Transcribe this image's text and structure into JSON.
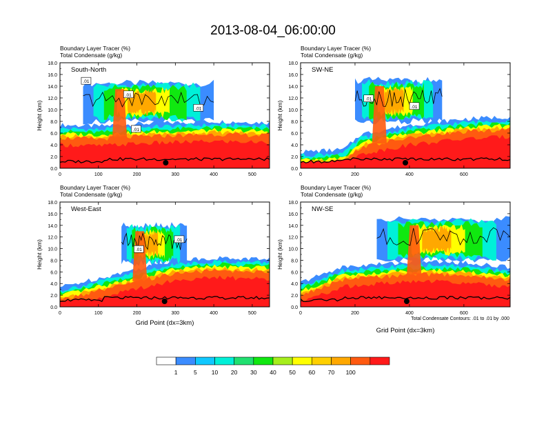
{
  "figure": {
    "title": "2013-08-04_06:00:00",
    "contour_note": "Total Condensate Contours: .01 to .01 by .000"
  },
  "chart_data": [
    {
      "type": "heatmap",
      "panel_label": "South-North",
      "subtitle_line1": "Boundary Layer Tracer   (%)",
      "subtitle_line2": "Total Condensate   (g/kg)",
      "xlabel": "",
      "ylabel": "Height (km)",
      "xlim": [
        0,
        545
      ],
      "ylim": [
        0,
        18
      ],
      "xticks": [
        0,
        100,
        200,
        300,
        400,
        500
      ],
      "yticks": [
        "0.0",
        "2.0",
        "4.0",
        "6.0",
        "8.0",
        "10.0",
        "12.0",
        "14.0",
        "16.0",
        "18.0"
      ],
      "marker_x": 275,
      "contour_labels": [
        {
          "text": ".01",
          "x": 68,
          "y": 14.8
        },
        {
          "text": ".01",
          "x": 178,
          "y": 12.5
        },
        {
          "text": ".01",
          "x": 360,
          "y": 10.2
        },
        {
          "text": ".01",
          "x": 198,
          "y": 6.6
        }
      ],
      "bl_top": [
        [
          0,
          5.2
        ],
        [
          100,
          5.0
        ],
        [
          200,
          5.4
        ],
        [
          300,
          5.6
        ],
        [
          400,
          5.8
        ],
        [
          545,
          5.6
        ]
      ],
      "cloud": {
        "x0": 60,
        "x1": 400,
        "top": 14.5,
        "base": 8.0
      }
    },
    {
      "type": "heatmap",
      "panel_label": "SW-NE",
      "subtitle_line1": "Boundary Layer Tracer   (%)",
      "subtitle_line2": "Total Condensate   (g/kg)",
      "xlabel": "",
      "ylabel": "Height (km)",
      "xlim": [
        0,
        770
      ],
      "ylim": [
        0,
        18
      ],
      "xticks": [
        0,
        200,
        400,
        600
      ],
      "yticks": [
        "0.0",
        "2.0",
        "4.0",
        "6.0",
        "8.0",
        "10.0",
        "12.0",
        "14.0",
        "16.0",
        "18.0"
      ],
      "marker_x": 385,
      "contour_labels": [
        {
          "text": ".01",
          "x": 250,
          "y": 11.8
        },
        {
          "text": ".01",
          "x": 418,
          "y": 10.5
        }
      ],
      "bl_top": [
        [
          0,
          0.6
        ],
        [
          160,
          1.0
        ],
        [
          220,
          3.6
        ],
        [
          400,
          5.2
        ],
        [
          600,
          6.2
        ],
        [
          770,
          6.6
        ]
      ],
      "cloud": {
        "x0": 200,
        "x1": 520,
        "top": 15.0,
        "base": 8.0
      }
    },
    {
      "type": "heatmap",
      "panel_label": "West-East",
      "subtitle_line1": "Boundary Layer Tracer   (%)",
      "subtitle_line2": "Total Condensate   (g/kg)",
      "xlabel": "Grid Point (dx=3km)",
      "ylabel": "Height (km)",
      "xlim": [
        0,
        545
      ],
      "ylim": [
        0,
        18
      ],
      "xticks": [
        0,
        100,
        200,
        300,
        400,
        500
      ],
      "yticks": [
        "0.0",
        "2.0",
        "4.0",
        "6.0",
        "8.0",
        "10.0",
        "12.0",
        "14.0",
        "16.0",
        "18.0"
      ],
      "marker_x": 272,
      "contour_labels": [
        {
          "text": ".01",
          "x": 205,
          "y": 9.8
        },
        {
          "text": ".01",
          "x": 310,
          "y": 11.5
        }
      ],
      "bl_top": [
        [
          0,
          1.2
        ],
        [
          120,
          3.0
        ],
        [
          220,
          4.6
        ],
        [
          300,
          5.8
        ],
        [
          400,
          6.2
        ],
        [
          545,
          6.0
        ]
      ],
      "cloud": {
        "x0": 160,
        "x1": 330,
        "top": 14.0,
        "base": 7.5
      }
    },
    {
      "type": "heatmap",
      "panel_label": "NW-SE",
      "subtitle_line1": "Boundary Layer Tracer   (%)",
      "subtitle_line2": "Total Condensate   (g/kg)",
      "xlabel": "Grid Point (dx=3km)",
      "ylabel": "Height (km)",
      "xlim": [
        0,
        770
      ],
      "ylim": [
        0,
        18
      ],
      "xticks": [
        0,
        200,
        400,
        600
      ],
      "yticks": [
        "0.0",
        "2.0",
        "4.0",
        "6.0",
        "8.0",
        "10.0",
        "12.0",
        "14.0",
        "16.0",
        "18.0"
      ],
      "marker_x": 390,
      "contour_labels": [],
      "bl_top": [
        [
          0,
          2.0
        ],
        [
          150,
          4.6
        ],
        [
          300,
          5.2
        ],
        [
          450,
          5.6
        ],
        [
          600,
          5.4
        ],
        [
          770,
          4.6
        ]
      ],
      "cloud": {
        "x0": 280,
        "x1": 770,
        "top": 15.0,
        "base": 8.0
      }
    }
  ],
  "colorbar": {
    "labels": [
      "1",
      "5",
      "10",
      "20",
      "30",
      "40",
      "50",
      "60",
      "70",
      "100"
    ],
    "colors": [
      "#ffffff",
      "#3b8cff",
      "#10c8ff",
      "#00f0d8",
      "#20e070",
      "#10e810",
      "#a6ee1c",
      "#ffff00",
      "#ffd000",
      "#ffa800",
      "#ff5a10",
      "#ff1a1a"
    ]
  }
}
